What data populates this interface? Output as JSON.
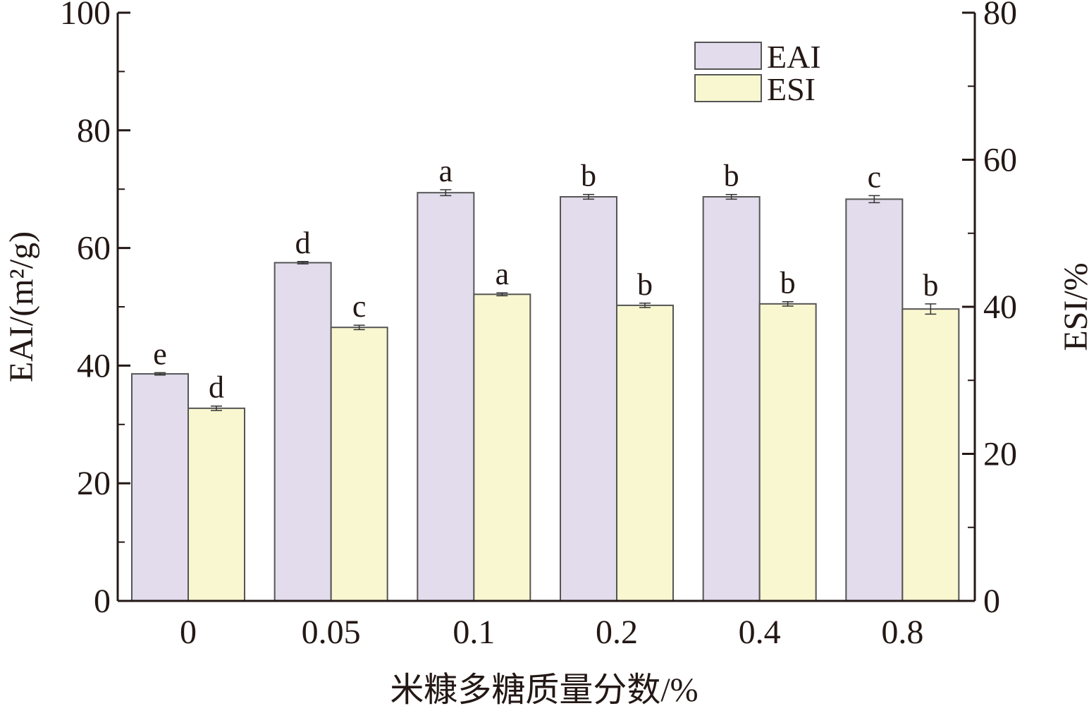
{
  "chart_data": {
    "type": "bar",
    "categories": [
      "0",
      "0.05",
      "0.1",
      "0.2",
      "0.4",
      "0.8"
    ],
    "xlabel": "米糠多糖质量分数/%",
    "ylabel_left": "EAI/(m²/g)",
    "ylabel_right": "ESI/%",
    "ylim_left": [
      0,
      100
    ],
    "ylim_right": [
      0,
      80
    ],
    "yticks_left": [
      "0",
      "20",
      "40",
      "60",
      "80",
      "100"
    ],
    "yticks_right": [
      "0",
      "20",
      "40",
      "60",
      "80"
    ],
    "legend_position": "top-right",
    "series": [
      {
        "name": "EAI",
        "axis": "left",
        "color": "#e2dcec",
        "values": [
          38.6,
          57.5,
          69.4,
          68.7,
          68.7,
          68.3
        ],
        "errors": [
          0.2,
          0.2,
          0.5,
          0.4,
          0.4,
          0.6
        ],
        "letters": [
          "e",
          "d",
          "a",
          "b",
          "b",
          "c"
        ]
      },
      {
        "name": "ESI",
        "axis": "right",
        "color": "#f8f7d0",
        "values": [
          26.2,
          37.2,
          41.7,
          40.2,
          40.4,
          39.7
        ],
        "errors": [
          0.3,
          0.3,
          0.2,
          0.3,
          0.3,
          0.7
        ],
        "letters": [
          "d",
          "c",
          "a",
          "b",
          "b",
          "b"
        ]
      }
    ]
  }
}
